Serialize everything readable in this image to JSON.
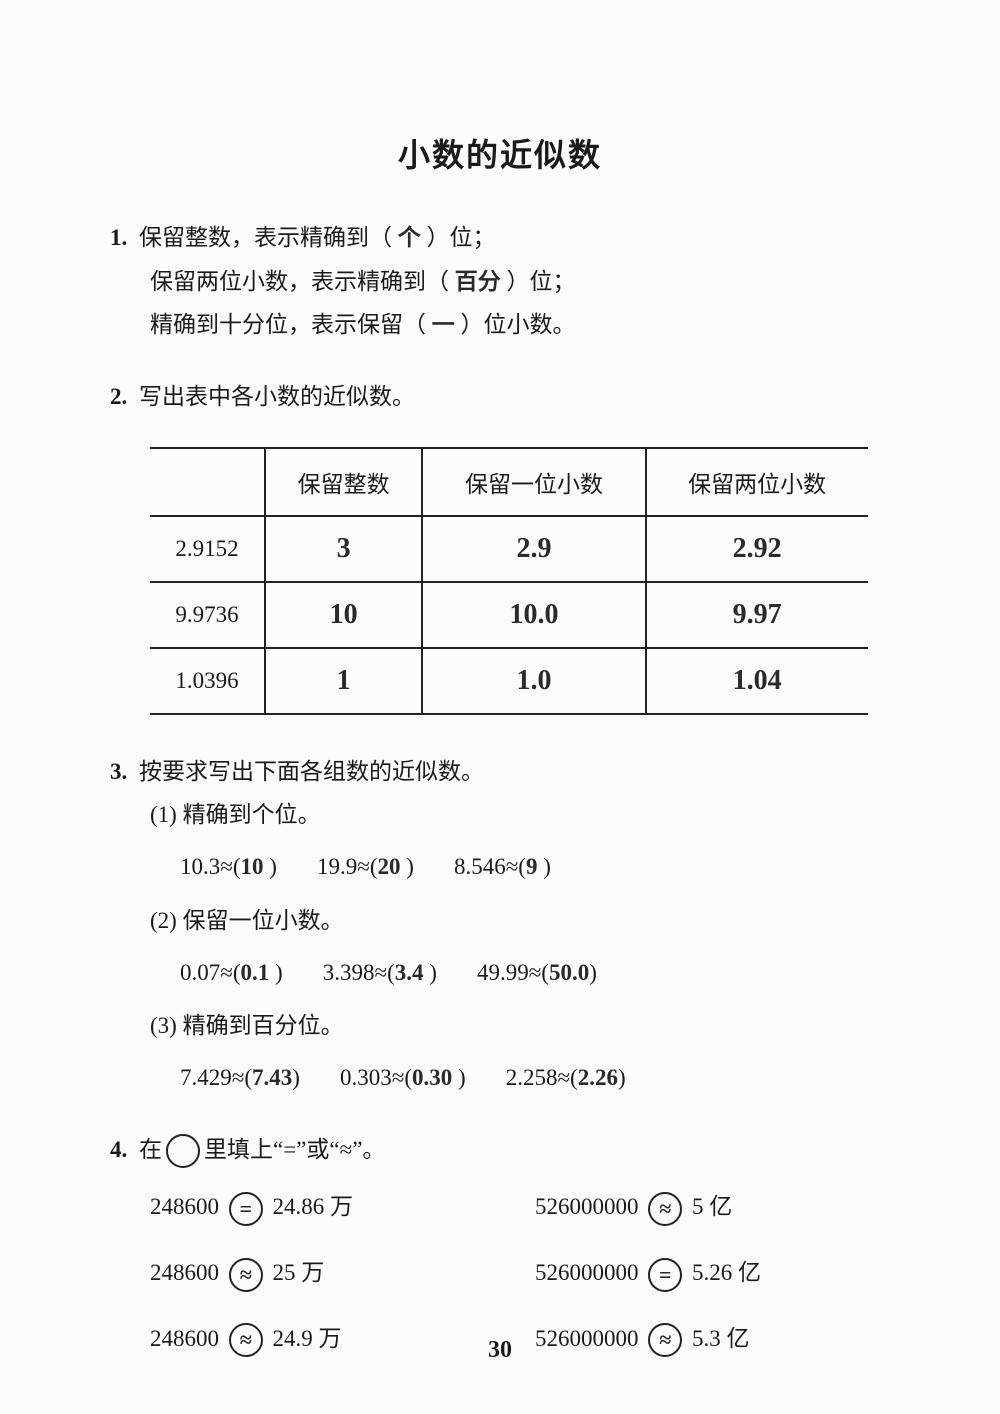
{
  "title": "小数的近似数",
  "q1": {
    "num": "1.",
    "line1_a": "保留整数，表示精确到（",
    "line1_ans": "个",
    "line1_b": "）位；",
    "line2_a": "保留两位小数，表示精确到（",
    "line2_ans": "百分",
    "line2_b": "）位；",
    "line3_a": "精确到十分位，表示保留（",
    "line3_ans": "一",
    "line3_b": "）位小数。"
  },
  "q2": {
    "num": "2.",
    "prompt": "写出表中各小数的近似数。",
    "headers": [
      "",
      "保留整数",
      "保留一位小数",
      "保留两位小数"
    ],
    "rows": [
      {
        "val": "2.9152",
        "c1": "3",
        "c2": "2.9",
        "c3": "2.92"
      },
      {
        "val": "9.9736",
        "c1": "10",
        "c2": "10.0",
        "c3": "9.97"
      },
      {
        "val": "1.0396",
        "c1": "1",
        "c2": "1.0",
        "c3": "1.04"
      }
    ]
  },
  "q3": {
    "num": "3.",
    "prompt": "按要求写出下面各组数的近似数。",
    "parts": [
      {
        "label": "(1) 精确到个位。",
        "items": [
          {
            "lhs": "10.3≈(",
            "ans": "10",
            "rhs": " )"
          },
          {
            "lhs": "19.9≈(",
            "ans": "20",
            "rhs": " )"
          },
          {
            "lhs": "8.546≈(",
            "ans": "9",
            "rhs": " )"
          }
        ]
      },
      {
        "label": "(2) 保留一位小数。",
        "items": [
          {
            "lhs": "0.07≈(",
            "ans": "0.1",
            "rhs": " )"
          },
          {
            "lhs": "3.398≈(",
            "ans": "3.4",
            "rhs": " )"
          },
          {
            "lhs": "49.99≈(",
            "ans": "50.0",
            "rhs": ")"
          }
        ]
      },
      {
        "label": "(3) 精确到百分位。",
        "items": [
          {
            "lhs": "7.429≈(",
            "ans": "7.43",
            "rhs": ")"
          },
          {
            "lhs": "0.303≈(",
            "ans": "0.30",
            "rhs": " )"
          },
          {
            "lhs": "2.258≈(",
            "ans": "2.26",
            "rhs": ")"
          }
        ]
      }
    ]
  },
  "q4": {
    "num": "4.",
    "prompt_a": "在",
    "prompt_b": "里填上“=”或“≈”。",
    "items": [
      {
        "lhs": "248600",
        "ans": "=",
        "rhs": "24.86 万"
      },
      {
        "lhs": "526000000",
        "ans": "≈",
        "rhs": "5 亿"
      },
      {
        "lhs": "248600",
        "ans": "≈",
        "rhs": "25 万"
      },
      {
        "lhs": "526000000",
        "ans": "=",
        "rhs": "5.26 亿"
      },
      {
        "lhs": "248600",
        "ans": "≈",
        "rhs": "24.9 万"
      },
      {
        "lhs": "526000000",
        "ans": "≈",
        "rhs": "5.3 亿"
      }
    ]
  },
  "page": "30"
}
